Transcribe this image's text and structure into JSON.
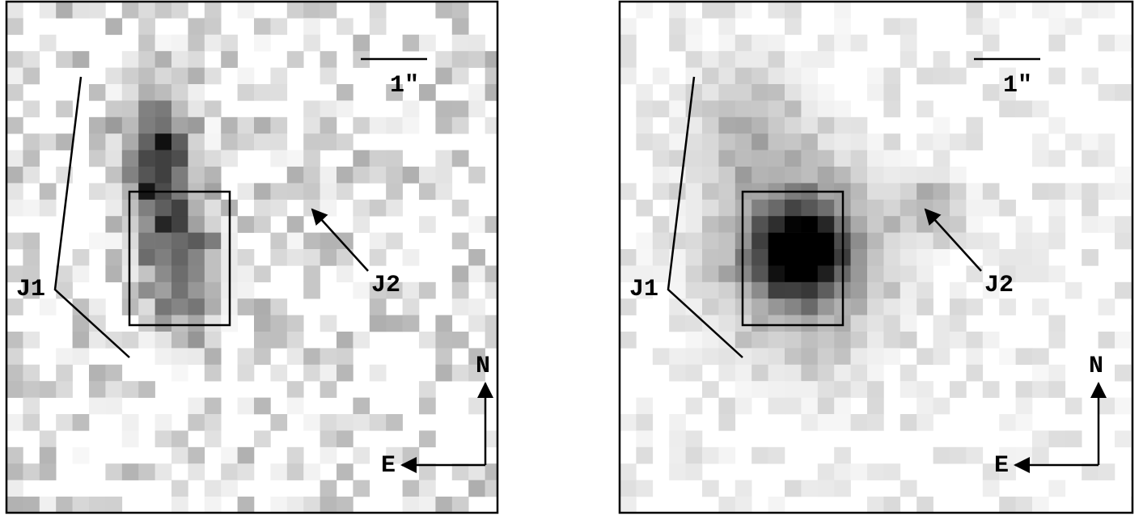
{
  "panels": [
    {
      "scale_label": "1″",
      "labels": {
        "j1": "J1",
        "j2": "J2",
        "north": "N",
        "east": "E"
      }
    },
    {
      "scale_label": "1″",
      "labels": {
        "j1": "J1",
        "j2": "J2",
        "north": "N",
        "east": "E"
      }
    }
  ]
}
